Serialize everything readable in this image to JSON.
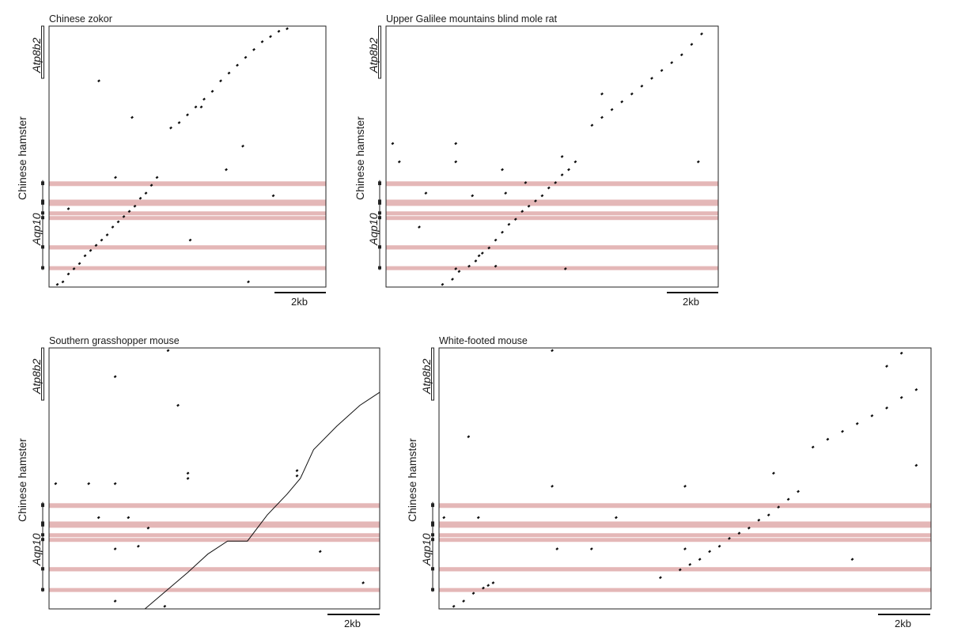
{
  "gene_top": "Atp8b2",
  "gene_bottom": "Aqp10",
  "y_species": "Chinese hamster",
  "scale_text": "2kb",
  "highlight_color": "#e4b7b7",
  "dot_color": "#111111",
  "panels": [
    {
      "title": "Chinese zokor",
      "dots": [
        [
          0.03,
          0.99
        ],
        [
          0.05,
          0.98
        ],
        [
          0.07,
          0.95
        ],
        [
          0.09,
          0.93
        ],
        [
          0.11,
          0.91
        ],
        [
          0.13,
          0.88
        ],
        [
          0.15,
          0.86
        ],
        [
          0.17,
          0.84
        ],
        [
          0.19,
          0.82
        ],
        [
          0.21,
          0.8
        ],
        [
          0.23,
          0.77
        ],
        [
          0.25,
          0.75
        ],
        [
          0.27,
          0.73
        ],
        [
          0.29,
          0.71
        ],
        [
          0.31,
          0.69
        ],
        [
          0.33,
          0.66
        ],
        [
          0.35,
          0.64
        ],
        [
          0.37,
          0.61
        ],
        [
          0.39,
          0.58
        ],
        [
          0.44,
          0.39
        ],
        [
          0.47,
          0.37
        ],
        [
          0.5,
          0.34
        ],
        [
          0.53,
          0.31
        ],
        [
          0.56,
          0.28
        ],
        [
          0.59,
          0.25
        ],
        [
          0.62,
          0.21
        ],
        [
          0.65,
          0.18
        ],
        [
          0.68,
          0.15
        ],
        [
          0.71,
          0.12
        ],
        [
          0.74,
          0.09
        ],
        [
          0.77,
          0.06
        ],
        [
          0.8,
          0.04
        ],
        [
          0.83,
          0.02
        ],
        [
          0.86,
          0.01
        ],
        [
          0.18,
          0.21
        ],
        [
          0.3,
          0.35
        ],
        [
          0.55,
          0.31
        ],
        [
          0.7,
          0.46
        ],
        [
          0.07,
          0.7
        ],
        [
          0.51,
          0.82
        ],
        [
          0.64,
          0.55
        ],
        [
          0.81,
          0.65
        ],
        [
          0.24,
          0.58
        ],
        [
          0.72,
          0.98
        ]
      ],
      "line": null
    },
    {
      "title": "Upper Galilee mountains blind mole rat",
      "dots": [
        [
          0.17,
          0.99
        ],
        [
          0.2,
          0.97
        ],
        [
          0.22,
          0.94
        ],
        [
          0.25,
          0.92
        ],
        [
          0.27,
          0.9
        ],
        [
          0.29,
          0.87
        ],
        [
          0.31,
          0.85
        ],
        [
          0.33,
          0.82
        ],
        [
          0.35,
          0.79
        ],
        [
          0.37,
          0.76
        ],
        [
          0.39,
          0.74
        ],
        [
          0.41,
          0.71
        ],
        [
          0.43,
          0.69
        ],
        [
          0.45,
          0.67
        ],
        [
          0.47,
          0.65
        ],
        [
          0.49,
          0.62
        ],
        [
          0.51,
          0.6
        ],
        [
          0.53,
          0.57
        ],
        [
          0.55,
          0.55
        ],
        [
          0.57,
          0.52
        ],
        [
          0.62,
          0.38
        ],
        [
          0.65,
          0.35
        ],
        [
          0.68,
          0.32
        ],
        [
          0.71,
          0.29
        ],
        [
          0.74,
          0.26
        ],
        [
          0.77,
          0.23
        ],
        [
          0.8,
          0.2
        ],
        [
          0.83,
          0.17
        ],
        [
          0.86,
          0.14
        ],
        [
          0.89,
          0.11
        ],
        [
          0.92,
          0.07
        ],
        [
          0.95,
          0.03
        ],
        [
          0.02,
          0.45
        ],
        [
          0.04,
          0.52
        ],
        [
          0.21,
          0.45
        ],
        [
          0.21,
          0.52
        ],
        [
          0.12,
          0.64
        ],
        [
          0.26,
          0.65
        ],
        [
          0.35,
          0.55
        ],
        [
          0.36,
          0.64
        ],
        [
          0.42,
          0.6
        ],
        [
          0.53,
          0.5
        ],
        [
          0.1,
          0.77
        ],
        [
          0.21,
          0.93
        ],
        [
          0.33,
          0.92
        ],
        [
          0.54,
          0.93
        ],
        [
          0.65,
          0.26
        ],
        [
          0.94,
          0.52
        ],
        [
          0.28,
          0.88
        ]
      ],
      "line": null
    },
    {
      "title": "Southern grasshopper mouse",
      "dots": [
        [
          0.2,
          0.97
        ],
        [
          0.36,
          0.01
        ],
        [
          0.2,
          0.11
        ],
        [
          0.39,
          0.22
        ],
        [
          0.42,
          0.48
        ],
        [
          0.42,
          0.5
        ],
        [
          0.75,
          0.47
        ],
        [
          0.75,
          0.49
        ],
        [
          0.02,
          0.52
        ],
        [
          0.12,
          0.52
        ],
        [
          0.2,
          0.52
        ],
        [
          0.15,
          0.65
        ],
        [
          0.24,
          0.65
        ],
        [
          0.3,
          0.69
        ],
        [
          0.2,
          0.77
        ],
        [
          0.27,
          0.76
        ],
        [
          0.82,
          0.78
        ],
        [
          0.95,
          0.9
        ],
        [
          0.35,
          0.99
        ]
      ],
      "line": [
        [
          0.29,
          1.0
        ],
        [
          0.42,
          0.86
        ],
        [
          0.48,
          0.79
        ],
        [
          0.54,
          0.74
        ],
        [
          0.56,
          0.74
        ],
        [
          0.6,
          0.74
        ],
        [
          0.66,
          0.64
        ],
        [
          0.72,
          0.56
        ],
        [
          0.76,
          0.5
        ],
        [
          0.8,
          0.39
        ],
        [
          0.87,
          0.3
        ],
        [
          0.94,
          0.22
        ],
        [
          1.0,
          0.17
        ]
      ]
    },
    {
      "title": "White-footed mouse",
      "dots": [
        [
          0.03,
          0.99
        ],
        [
          0.05,
          0.97
        ],
        [
          0.07,
          0.94
        ],
        [
          0.09,
          0.92
        ],
        [
          0.11,
          0.9
        ],
        [
          0.45,
          0.88
        ],
        [
          0.49,
          0.85
        ],
        [
          0.51,
          0.83
        ],
        [
          0.53,
          0.81
        ],
        [
          0.55,
          0.78
        ],
        [
          0.57,
          0.76
        ],
        [
          0.59,
          0.73
        ],
        [
          0.61,
          0.71
        ],
        [
          0.63,
          0.69
        ],
        [
          0.65,
          0.66
        ],
        [
          0.67,
          0.64
        ],
        [
          0.69,
          0.61
        ],
        [
          0.71,
          0.58
        ],
        [
          0.73,
          0.55
        ],
        [
          0.76,
          0.38
        ],
        [
          0.79,
          0.35
        ],
        [
          0.82,
          0.32
        ],
        [
          0.85,
          0.29
        ],
        [
          0.88,
          0.26
        ],
        [
          0.91,
          0.23
        ],
        [
          0.94,
          0.19
        ],
        [
          0.97,
          0.16
        ],
        [
          0.91,
          0.07
        ],
        [
          0.94,
          0.02
        ],
        [
          0.23,
          0.01
        ],
        [
          0.06,
          0.34
        ],
        [
          0.23,
          0.53
        ],
        [
          0.5,
          0.53
        ],
        [
          0.97,
          0.45
        ],
        [
          0.01,
          0.65
        ],
        [
          0.08,
          0.65
        ],
        [
          0.36,
          0.65
        ],
        [
          0.24,
          0.77
        ],
        [
          0.31,
          0.77
        ],
        [
          0.5,
          0.77
        ],
        [
          0.84,
          0.81
        ],
        [
          0.68,
          0.48
        ],
        [
          0.1,
          0.91
        ]
      ],
      "line": null
    }
  ]
}
